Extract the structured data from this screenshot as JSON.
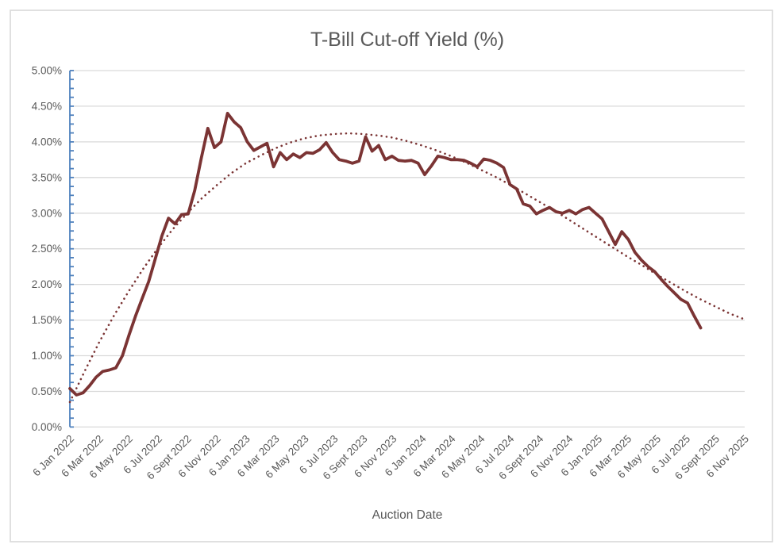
{
  "chart_data": {
    "type": "line",
    "title": "T-Bill Cut-off Yield (%)",
    "xlabel": "Auction Date",
    "ylabel": "",
    "legend": "none",
    "grid": "horizontal",
    "ylim_percent": [
      0,
      5
    ],
    "y_ticks": {
      "values": [
        0,
        0.5,
        1,
        1.5,
        2,
        2.5,
        3,
        3.5,
        4,
        4.5,
        5
      ],
      "labels": [
        "0.00%",
        "0.50%",
        "1.00%",
        "1.50%",
        "2.00%",
        "2.50%",
        "3.00%",
        "3.50%",
        "4.00%",
        "4.50%",
        "5.00%"
      ]
    },
    "x_axis_span_months": 46,
    "x_tick_interval_months": 2,
    "x_tick_labels": [
      "6 Jan 2022",
      "6 Mar 2022",
      "6 May 2022",
      "6 Jul 2022",
      "6 Sept 2022",
      "6 Nov 2022",
      "6 Jan 2023",
      "6 Mar 2023",
      "6 May 2023",
      "6 Jul 2023",
      "6 Sept 2023",
      "6 Nov 2023",
      "6 Jan 2024",
      "6 Mar 2024",
      "6 May 2024",
      "6 Jul 2024",
      "6 Sept 2024",
      "6 Nov 2024",
      "6 Jan 2025",
      "6 Mar 2025",
      "6 May 2025",
      "6 Jul 2025",
      "6 Sept 2025",
      "6 Nov 2025"
    ],
    "series": [
      {
        "name": "T-Bill cut-off yield (%)",
        "style": "solid",
        "color": "#7B3434",
        "start_month": 0,
        "span_months": 43,
        "values": [
          0.54,
          0.45,
          0.48,
          0.58,
          0.7,
          0.78,
          0.8,
          0.83,
          1.0,
          1.29,
          1.56,
          1.8,
          2.04,
          2.36,
          2.68,
          2.93,
          2.85,
          2.98,
          2.99,
          3.32,
          3.77,
          4.19,
          3.92,
          4.0,
          4.4,
          4.28,
          4.2,
          4.0,
          3.88,
          3.93,
          3.98,
          3.65,
          3.85,
          3.75,
          3.83,
          3.78,
          3.85,
          3.84,
          3.89,
          3.99,
          3.85,
          3.75,
          3.73,
          3.7,
          3.73,
          4.07,
          3.87,
          3.95,
          3.75,
          3.8,
          3.74,
          3.73,
          3.74,
          3.7,
          3.54,
          3.66,
          3.8,
          3.78,
          3.75,
          3.75,
          3.74,
          3.7,
          3.65,
          3.76,
          3.74,
          3.7,
          3.64,
          3.4,
          3.34,
          3.13,
          3.1,
          2.99,
          3.04,
          3.08,
          3.02,
          3.0,
          3.04,
          2.99,
          3.05,
          3.08,
          3.0,
          2.92,
          2.74,
          2.56,
          2.74,
          2.63,
          2.45,
          2.34,
          2.25,
          2.18,
          2.07,
          1.97,
          1.88,
          1.79,
          1.74,
          1.56,
          1.39
        ]
      }
    ],
    "trendline": {
      "name": "polynomial-trendline",
      "style": "dotted",
      "color": "#7B3434",
      "start_month": 0,
      "span_months": 46,
      "monthly_values": [
        0.35,
        0.78,
        1.19,
        1.56,
        1.9,
        2.22,
        2.51,
        2.77,
        3.0,
        3.21,
        3.39,
        3.56,
        3.7,
        3.81,
        3.91,
        3.99,
        4.05,
        4.09,
        4.11,
        4.12,
        4.11,
        4.09,
        4.06,
        4.01,
        3.95,
        3.88,
        3.8,
        3.71,
        3.61,
        3.51,
        3.4,
        3.28,
        3.16,
        3.04,
        2.91,
        2.78,
        2.65,
        2.52,
        2.39,
        2.27,
        2.14,
        2.02,
        1.9,
        1.79,
        1.69,
        1.59,
        1.51
      ]
    },
    "style_colors": {
      "y_axis": "#4F81BD",
      "gridline": "#D9D9D9",
      "text": "#595959",
      "border": "#D9D9D9",
      "background": "#FFFFFF"
    }
  }
}
